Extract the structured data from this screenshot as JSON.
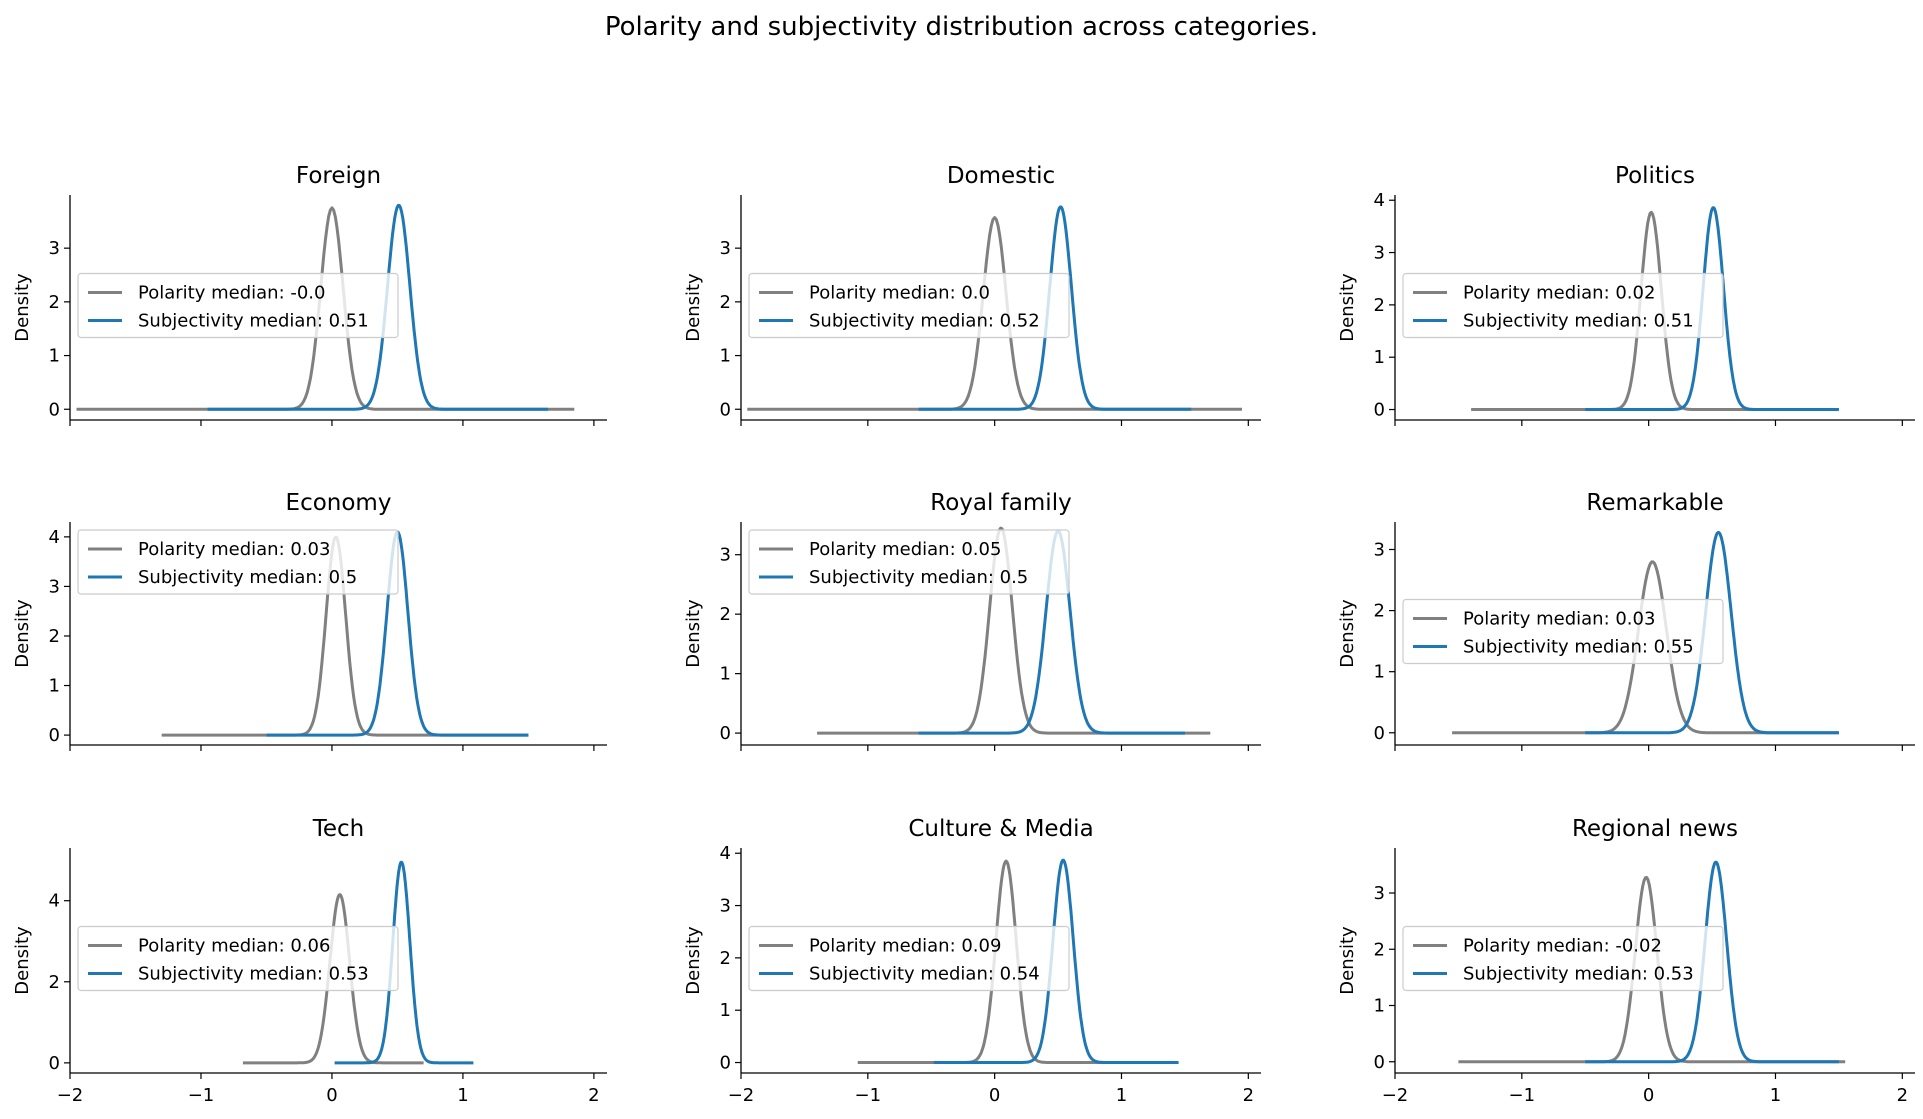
{
  "figure": {
    "title": "Polarity and subjectivity distribution across categories."
  },
  "colors": {
    "polarity": "#808080",
    "subjectivity": "#1f77b4",
    "axis": "#000000",
    "legend_border": "#cccccc"
  },
  "chart_data": [
    {
      "type": "line",
      "title": "Foreign",
      "ylabel": "Density",
      "xlim": [
        -2.0,
        2.1
      ],
      "ylim": [
        -0.2,
        3.99
      ],
      "yticks": [
        0,
        1,
        2,
        3
      ],
      "xticks": [
        -2,
        -1,
        0,
        1,
        2
      ],
      "legend_loc": "center-left",
      "series": [
        {
          "name": "Polarity median: -0.0",
          "kind": "polarity",
          "median": -0.0,
          "range": [
            -1.95,
            1.85
          ],
          "peak": 3.75,
          "sd": 0.085
        },
        {
          "name": "Subjectivity median: 0.51",
          "kind": "subjectivity",
          "median": 0.51,
          "range": [
            -0.95,
            1.65
          ],
          "peak": 3.8,
          "sd": 0.085
        }
      ]
    },
    {
      "type": "line",
      "title": "Domestic",
      "ylabel": "Density",
      "xlim": [
        -2.0,
        2.1
      ],
      "ylim": [
        -0.2,
        3.99
      ],
      "yticks": [
        0,
        1,
        2,
        3
      ],
      "xticks": [
        -2,
        -1,
        0,
        1,
        2
      ],
      "legend_loc": "center-left",
      "series": [
        {
          "name": "Polarity median: 0.0",
          "kind": "polarity",
          "median": 0.0,
          "range": [
            -1.95,
            1.95
          ],
          "peak": 3.57,
          "sd": 0.09
        },
        {
          "name": "Subjectivity median: 0.52",
          "kind": "subjectivity",
          "median": 0.52,
          "range": [
            -0.6,
            1.55
          ],
          "peak": 3.77,
          "sd": 0.085
        }
      ]
    },
    {
      "type": "line",
      "title": "Politics",
      "ylabel": "Density",
      "xlim": [
        -2.0,
        2.1
      ],
      "ylim": [
        -0.2,
        4.1
      ],
      "yticks": [
        0,
        1,
        2,
        3,
        4
      ],
      "xticks": [
        -2,
        -1,
        0,
        1,
        2
      ],
      "legend_loc": "center-left",
      "series": [
        {
          "name": "Polarity median: 0.02",
          "kind": "polarity",
          "median": 0.02,
          "range": [
            -1.4,
            1.5
          ],
          "peak": 3.77,
          "sd": 0.08
        },
        {
          "name": "Subjectivity median: 0.51",
          "kind": "subjectivity",
          "median": 0.51,
          "range": [
            -0.5,
            1.5
          ],
          "peak": 3.86,
          "sd": 0.08
        }
      ]
    },
    {
      "type": "line",
      "title": "Economy",
      "ylabel": "Density",
      "xlim": [
        -2.0,
        2.1
      ],
      "ylim": [
        -0.2,
        4.3
      ],
      "yticks": [
        0,
        1,
        2,
        3,
        4
      ],
      "xticks": [
        -2,
        -1,
        0,
        1,
        2
      ],
      "legend_loc": "upper-left",
      "series": [
        {
          "name": "Polarity median: 0.03",
          "kind": "polarity",
          "median": 0.03,
          "range": [
            -1.3,
            1.5
          ],
          "peak": 4.0,
          "sd": 0.075
        },
        {
          "name": "Subjectivity median: 0.5",
          "kind": "subjectivity",
          "median": 0.5,
          "range": [
            -0.5,
            1.5
          ],
          "peak": 4.1,
          "sd": 0.08
        }
      ]
    },
    {
      "type": "line",
      "title": "Royal family",
      "ylabel": "Density",
      "xlim": [
        -2.0,
        2.1
      ],
      "ylim": [
        -0.2,
        3.55
      ],
      "yticks": [
        0,
        1,
        2,
        3
      ],
      "xticks": [
        -2,
        -1,
        0,
        1,
        2
      ],
      "legend_loc": "upper-left",
      "series": [
        {
          "name": "Polarity median: 0.05",
          "kind": "polarity",
          "median": 0.05,
          "range": [
            -1.4,
            1.7
          ],
          "peak": 3.45,
          "sd": 0.09
        },
        {
          "name": "Subjectivity median: 0.5",
          "kind": "subjectivity",
          "median": 0.5,
          "range": [
            -0.6,
            1.5
          ],
          "peak": 3.4,
          "sd": 0.095
        }
      ]
    },
    {
      "type": "line",
      "title": "Remarkable",
      "ylabel": "Density",
      "xlim": [
        -2.0,
        2.1
      ],
      "ylim": [
        -0.2,
        3.45
      ],
      "yticks": [
        0,
        1,
        2,
        3
      ],
      "xticks": [
        -2,
        -1,
        0,
        1,
        2
      ],
      "legend_loc": "center-left",
      "series": [
        {
          "name": "Polarity median: 0.03",
          "kind": "polarity",
          "median": 0.03,
          "range": [
            -1.55,
            1.5
          ],
          "peak": 2.8,
          "sd": 0.11
        },
        {
          "name": "Subjectivity median: 0.55",
          "kind": "subjectivity",
          "median": 0.55,
          "range": [
            -0.5,
            1.5
          ],
          "peak": 3.28,
          "sd": 0.1
        }
      ]
    },
    {
      "type": "line",
      "title": "Tech",
      "ylabel": "Density",
      "xlim": [
        -2.0,
        2.1
      ],
      "ylim": [
        -0.25,
        5.3
      ],
      "yticks": [
        0,
        2,
        4
      ],
      "xticks": [
        -2,
        -1,
        0,
        1,
        2
      ],
      "legend_loc": "center-left",
      "series": [
        {
          "name": "Polarity median: 0.06",
          "kind": "polarity",
          "median": 0.06,
          "range": [
            -0.68,
            0.7
          ],
          "peak": 4.15,
          "sd": 0.075
        },
        {
          "name": "Subjectivity median: 0.53",
          "kind": "subjectivity",
          "median": 0.53,
          "range": [
            0.02,
            1.08
          ],
          "peak": 4.95,
          "sd": 0.065
        }
      ]
    },
    {
      "type": "line",
      "title": "Culture & Media",
      "ylabel": "Density",
      "xlim": [
        -2.0,
        2.1
      ],
      "ylim": [
        -0.2,
        4.1
      ],
      "yticks": [
        0,
        1,
        2,
        3,
        4
      ],
      "xticks": [
        -2,
        -1,
        0,
        1,
        2
      ],
      "legend_loc": "center-left",
      "series": [
        {
          "name": "Polarity median: 0.09",
          "kind": "polarity",
          "median": 0.09,
          "range": [
            -1.08,
            1.2
          ],
          "peak": 3.85,
          "sd": 0.08
        },
        {
          "name": "Subjectivity median: 0.54",
          "kind": "subjectivity",
          "median": 0.54,
          "range": [
            -0.48,
            1.45
          ],
          "peak": 3.87,
          "sd": 0.08
        }
      ]
    },
    {
      "type": "line",
      "title": "Regional news",
      "ylabel": "Density",
      "xlim": [
        -2.0,
        2.1
      ],
      "ylim": [
        -0.2,
        3.8
      ],
      "yticks": [
        0,
        1,
        2,
        3
      ],
      "xticks": [
        -2,
        -1,
        0,
        1,
        2
      ],
      "legend_loc": "center-left",
      "series": [
        {
          "name": "Polarity median: -0.02",
          "kind": "polarity",
          "median": -0.02,
          "range": [
            -1.5,
            1.55
          ],
          "peak": 3.28,
          "sd": 0.085
        },
        {
          "name": "Subjectivity median: 0.53",
          "kind": "subjectivity",
          "median": 0.53,
          "range": [
            -0.5,
            1.5
          ],
          "peak": 3.55,
          "sd": 0.085
        }
      ]
    }
  ]
}
